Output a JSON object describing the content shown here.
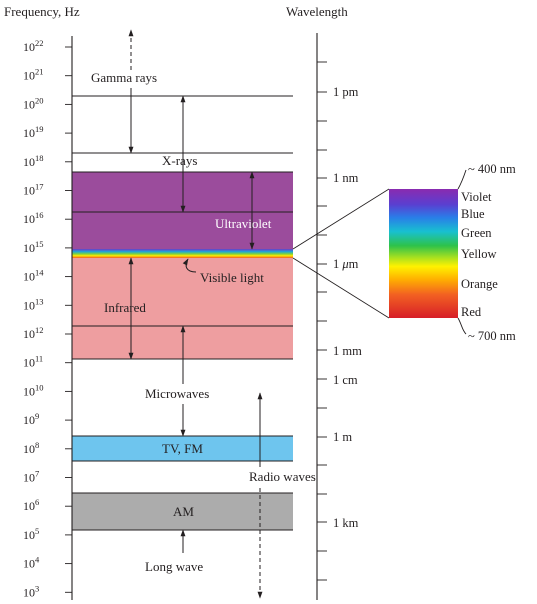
{
  "header": {
    "frequency_label": "Frequency, Hz",
    "wavelength_label": "Wavelength"
  },
  "frequency_ticks": [
    {
      "base": "10",
      "exp": "22"
    },
    {
      "base": "10",
      "exp": "21"
    },
    {
      "base": "10",
      "exp": "20"
    },
    {
      "base": "10",
      "exp": "19"
    },
    {
      "base": "10",
      "exp": "18"
    },
    {
      "base": "10",
      "exp": "17"
    },
    {
      "base": "10",
      "exp": "16"
    },
    {
      "base": "10",
      "exp": "15"
    },
    {
      "base": "10",
      "exp": "14"
    },
    {
      "base": "10",
      "exp": "13"
    },
    {
      "base": "10",
      "exp": "12"
    },
    {
      "base": "10",
      "exp": "11"
    },
    {
      "base": "10",
      "exp": "10"
    },
    {
      "base": "10",
      "exp": "9"
    },
    {
      "base": "10",
      "exp": "8"
    },
    {
      "base": "10",
      "exp": "7"
    },
    {
      "base": "10",
      "exp": "6"
    },
    {
      "base": "10",
      "exp": "5"
    },
    {
      "base": "10",
      "exp": "4"
    },
    {
      "base": "10",
      "exp": "3"
    }
  ],
  "wavelength_labels": {
    "pm": "1 pm",
    "nm": "1 nm",
    "um_prefix": "1 ",
    "um_mu": "μ",
    "um_suffix": "m",
    "mm": "1 mm",
    "cm": "1 cm",
    "m": "1 m",
    "km": "1 km"
  },
  "regions": {
    "gamma": "Gamma rays",
    "xrays": "X-rays",
    "ultraviolet": "Ultraviolet",
    "visible": "Visible light",
    "infrared": "Infrared",
    "microwaves": "Microwaves",
    "tvfm": "TV, FM",
    "radio": "Radio waves",
    "am": "AM",
    "longwave": "Long wave"
  },
  "spectrum": {
    "top": "~ 400 nm",
    "bottom": "~ 700 nm",
    "colors": [
      "Violet",
      "Blue",
      "Green",
      "Yellow",
      "Orange",
      "Red"
    ]
  },
  "colors": {
    "ultraviolet_band": "#9b4c9c",
    "infrared_band": "#ee9ea0",
    "tvfm_band": "#6ec5ee",
    "am_band": "#acacac",
    "ink": "#231f20"
  }
}
